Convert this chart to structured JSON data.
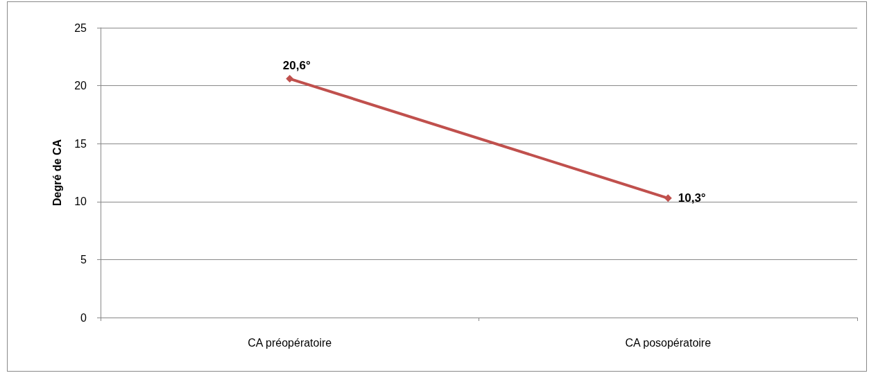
{
  "chart_data": {
    "type": "line",
    "ylabel": "Degré de CA",
    "categories": [
      "CA préopératoire",
      "CA posopératoire"
    ],
    "series": [
      {
        "color": "#c0504d",
        "values": [
          20.6,
          10.3
        ],
        "value_labels": [
          "20,6°",
          "10,3°"
        ]
      }
    ],
    "ylim": [
      0,
      25
    ],
    "yticks": [
      0,
      5,
      10,
      15,
      20,
      25
    ],
    "grid": "y",
    "marker": "diamond",
    "line_style": "solid"
  }
}
